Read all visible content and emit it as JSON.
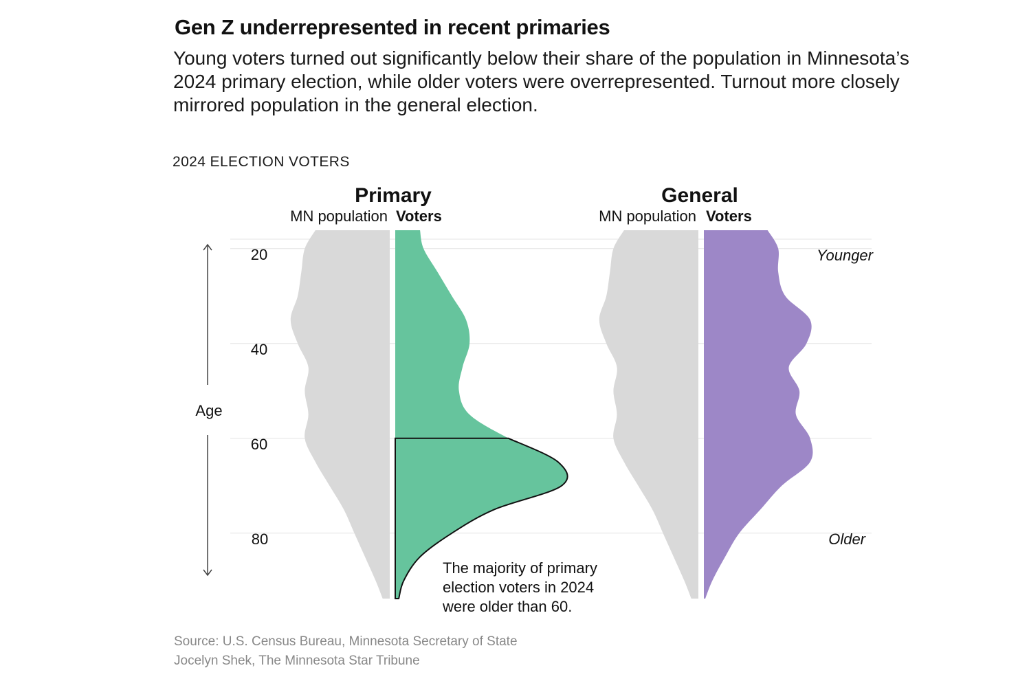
{
  "header": {
    "title": "Gen Z underrepresented in recent primaries",
    "subtitle": "Young voters turned out significantly below their share of the population in Minnesota’s 2024 primary election, while older voters were overrepresented. Turnout more closely mirrored population in the general election.",
    "kicker": "2024 ELECTION VOTERS"
  },
  "chart_data": {
    "type": "area",
    "description_labels": {
      "panel_primary": "Primary",
      "panel_general": "General",
      "population_label": "MN population",
      "voters_label": "Voters",
      "axis_label": "Age",
      "younger_label": "Younger",
      "older_label": "Older",
      "annotation": "The majority of primary election voters in 2024 were older than 60."
    },
    "y_axis": {
      "label": "Age",
      "ticks": [
        20,
        40,
        60,
        80
      ],
      "range": [
        18,
        95
      ],
      "grid": true
    },
    "ages": [
      18,
      20,
      25,
      30,
      35,
      40,
      45,
      50,
      55,
      60,
      65,
      70,
      75,
      80,
      85,
      90,
      95
    ],
    "series": [
      {
        "name": "MN population",
        "panel": "Primary",
        "values": [
          1.05,
          1.2,
          1.25,
          1.3,
          1.4,
          1.3,
          1.15,
          1.2,
          1.15,
          1.2,
          1.05,
          0.85,
          0.65,
          0.5,
          0.35,
          0.2,
          0.1
        ]
      },
      {
        "name": "Voters",
        "panel": "Primary",
        "values": [
          0.35,
          0.4,
          0.6,
          0.8,
          1.0,
          1.05,
          0.95,
          0.9,
          1.05,
          1.6,
          2.3,
          2.35,
          1.4,
          0.8,
          0.35,
          0.12,
          0.05
        ]
      },
      {
        "name": "MN population",
        "panel": "General",
        "values": [
          1.05,
          1.2,
          1.25,
          1.3,
          1.4,
          1.3,
          1.15,
          1.2,
          1.15,
          1.2,
          1.05,
          0.85,
          0.65,
          0.5,
          0.35,
          0.2,
          0.1
        ]
      },
      {
        "name": "Voters",
        "panel": "General",
        "values": [
          0.9,
          1.05,
          1.05,
          1.15,
          1.5,
          1.45,
          1.2,
          1.35,
          1.3,
          1.5,
          1.5,
          1.1,
          0.8,
          0.5,
          0.3,
          0.12,
          0.02
        ]
      }
    ],
    "colors": {
      "population": "#d9d9d9",
      "primary_voters": "#66c49d",
      "general_voters": "#9d87c7",
      "grid": "#e4e4e4"
    }
  },
  "footer": {
    "source": "Source: U.S. Census Bureau, Minnesota Secretary of State",
    "credit": "Jocelyn Shek, The Minnesota Star Tribune"
  }
}
